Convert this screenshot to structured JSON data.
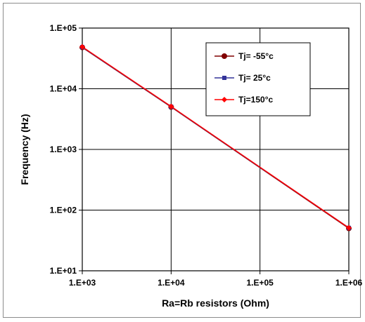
{
  "chart_data": {
    "type": "line",
    "title": "",
    "xlabel": "Ra=Rb resistors (Ohm)",
    "ylabel": "Frequency  (Hz)",
    "xscale": "log",
    "yscale": "log",
    "xlim": [
      1000,
      1000000
    ],
    "ylim": [
      10,
      100000
    ],
    "x_ticks": [
      1000,
      10000,
      100000,
      1000000
    ],
    "x_tick_labels": [
      "1.E+03",
      "1.E+04",
      "1.E+05",
      "1.E+06"
    ],
    "y_ticks": [
      10,
      100,
      1000,
      10000,
      100000
    ],
    "y_tick_labels": [
      "1.E+01",
      "1.E+02",
      "1.E+03",
      "1.E+04",
      "1.E+05"
    ],
    "grid": true,
    "legend_position": "top-right",
    "series": [
      {
        "name": "Tj= -55°c",
        "color": "#800000",
        "marker": "circle",
        "x": [
          1000,
          10000,
          1000000
        ],
        "y": [
          48000,
          5000,
          50
        ]
      },
      {
        "name": "Tj= 25°c",
        "color": "#333399",
        "marker": "square",
        "x": [
          1000,
          10000,
          1000000
        ],
        "y": [
          48500,
          5050,
          51
        ]
      },
      {
        "name": "Tj=150°c",
        "color": "#ff0000",
        "marker": "diamond",
        "x": [
          1000,
          10000,
          1000000
        ],
        "y": [
          49000,
          5100,
          51
        ]
      }
    ]
  }
}
